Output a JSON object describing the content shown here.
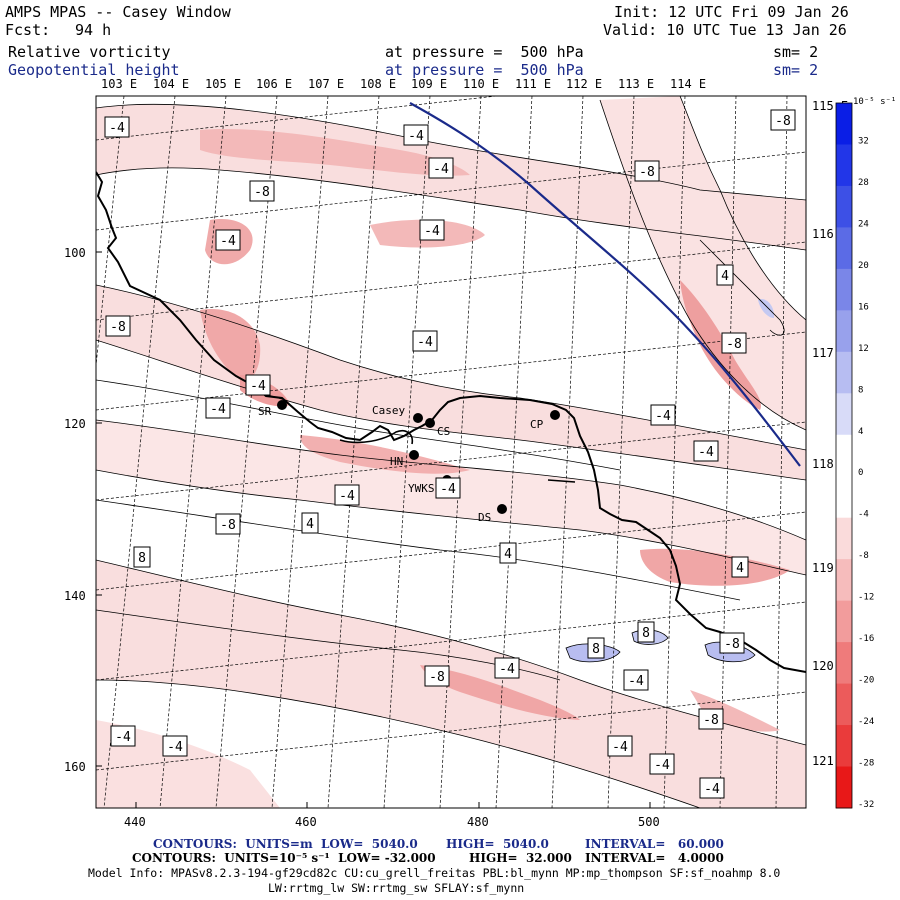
{
  "header": {
    "title": "AMPS MPAS -- Casey Window",
    "forecast_label": "Fcst:",
    "forecast_value": "94 h",
    "init": "Init: 12 UTC Fri 09 Jan 26",
    "valid": "Valid: 10 UTC Tue 13 Jan 26",
    "field1_name": "Relative vorticity",
    "field1_level": "at pressure =  500 hPa",
    "field1_sm": "sm= 2",
    "field2_name": "Geopotential height",
    "field2_level": "at pressure =  500 hPa",
    "field2_sm": "sm= 2"
  },
  "top_lon_labels": [
    "103 E",
    "104 E",
    "105 E",
    "106 E",
    "107 E",
    "108 E",
    "109 E",
    "110 E",
    "111 E",
    "112 E",
    "113 E",
    "114 E"
  ],
  "right_lon_labels": [
    "115 E",
    "116 E",
    "117 E",
    "118 E",
    "119 E",
    "120 E",
    "121 E"
  ],
  "y_ticks": [
    "100",
    "120",
    "140",
    "160"
  ],
  "x_ticks": [
    "440",
    "460",
    "480",
    "500"
  ],
  "stations": [
    {
      "name": "SR"
    },
    {
      "name": "Casey"
    },
    {
      "name": "CS"
    },
    {
      "name": "CP"
    },
    {
      "name": "HN"
    },
    {
      "name": "YWKS"
    },
    {
      "name": "DS"
    }
  ],
  "contour_labels": [
    "-4",
    "-8",
    "-4",
    "-4",
    "-8",
    "-8",
    "-4",
    "-4",
    "4",
    "-8",
    "-4",
    "-8",
    "-4",
    "-4",
    "-4",
    "-4",
    "4",
    "-4",
    "4",
    "-4",
    "-8",
    "8",
    "8",
    "8",
    "-8",
    "4",
    "-4",
    "-8",
    "-4",
    "-4",
    "-4",
    "-4",
    "-4",
    "-4",
    "-8"
  ],
  "colorbar": {
    "unit": "10⁻⁵ s⁻¹",
    "labels": [
      "32",
      "28",
      "24",
      "20",
      "16",
      "12",
      "8",
      "4",
      "0",
      "-4",
      "-8",
      "-12",
      "-16",
      "-20",
      "-24",
      "-28",
      "-32"
    ],
    "colors": [
      "#0a1ee6",
      "#2236e8",
      "#3d50e6",
      "#5b6be6",
      "#7a86e8",
      "#98a1ec",
      "#b7bdf2",
      "#d8dbf8",
      "#ffffff",
      "#ffffff",
      "#fadbdb",
      "#f6bcbc",
      "#f29c9c",
      "#ef7b7b",
      "#ec5b5b",
      "#ea3b3b",
      "#e81818"
    ],
    "positive_color": "#b8bdf0",
    "negative_light": "#f7d9d9",
    "negative_mid": "#f0b0b0",
    "negative_dark": "#e88a8a"
  },
  "footer": {
    "line1_a": "CONTOURS:  UNITS=m  LOW=  5040.0",
    "line1_b": "HIGH=  5040.0",
    "line1_c": "INTERVAL=   60.000",
    "line2_a": "CONTOURS:  UNITS=10⁻⁵ s⁻¹  LOW= -32.000",
    "line2_b": "HIGH=  32.000",
    "line2_c": "INTERVAL=   4.0000",
    "line3": "Model Info: MPASv8.2.3-194-gf29cd82c CU:cu_grell_freitas PBL:bl_mynn MP:mp_thompson SF:sf_noahmp 8.0",
    "line4": "LW:rrtmg_lw SW:rrtmg_sw SFLAY:sf_mynn"
  }
}
